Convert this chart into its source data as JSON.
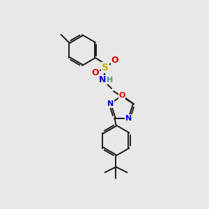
{
  "background_color": "#e8e8e8",
  "bond_color": "#1a1a1a",
  "atom_colors": {
    "S": "#c8b400",
    "N": "#0000e0",
    "O": "#e00000",
    "H": "#5a9090",
    "C": "#1a1a1a"
  },
  "figsize": [
    3.0,
    3.0
  ],
  "dpi": 100
}
